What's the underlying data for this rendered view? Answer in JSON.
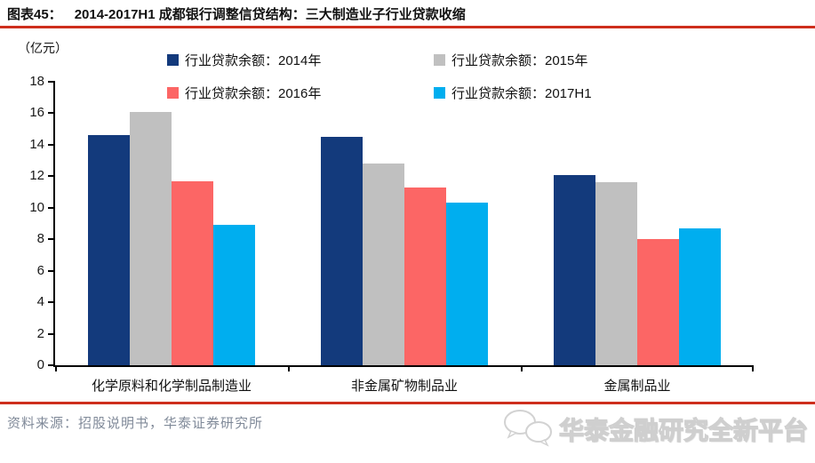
{
  "header": {
    "figure_label": "图表45：",
    "title": "2014-2017H1 成都银行调整信贷结构：三大制造业子行业贷款收缩"
  },
  "chart_data": {
    "type": "bar",
    "title": "2014-2017H1 成都银行调整信贷结构：三大制造业子行业贷款收缩",
    "unit_label": "（亿元）",
    "categories": [
      "化学原料和化学制品制造业",
      "非金属矿物制品业",
      "金属制品业"
    ],
    "series": [
      {
        "name": "行业贷款余额：2014年",
        "color": "#133A7C",
        "values": [
          14.6,
          14.5,
          12.1
        ]
      },
      {
        "name": "行业贷款余额：2015年",
        "color": "#C0C0C0",
        "values": [
          16.1,
          12.8,
          11.6
        ]
      },
      {
        "name": "行业贷款余额：2016年",
        "color": "#FC6665",
        "values": [
          11.7,
          11.3,
          8.0
        ]
      },
      {
        "name": "行业贷款余额：2017H1",
        "color": "#00AEEF",
        "values": [
          8.9,
          10.3,
          8.7
        ]
      }
    ],
    "ylim": [
      0,
      18
    ],
    "yticks": [
      0,
      2,
      4,
      6,
      8,
      10,
      12,
      14,
      16,
      18
    ],
    "grid": false,
    "legend_position": "top"
  },
  "footer": {
    "source_text": "资料来源：招股说明书，华泰证券研究所",
    "watermark_text": "华泰金融研究全新平台",
    "watermark_icon": "chat-bubbles-icon"
  },
  "colors": {
    "accent_red": "#CE2E1C",
    "source_text": "#808A99",
    "axis": "#000000"
  }
}
